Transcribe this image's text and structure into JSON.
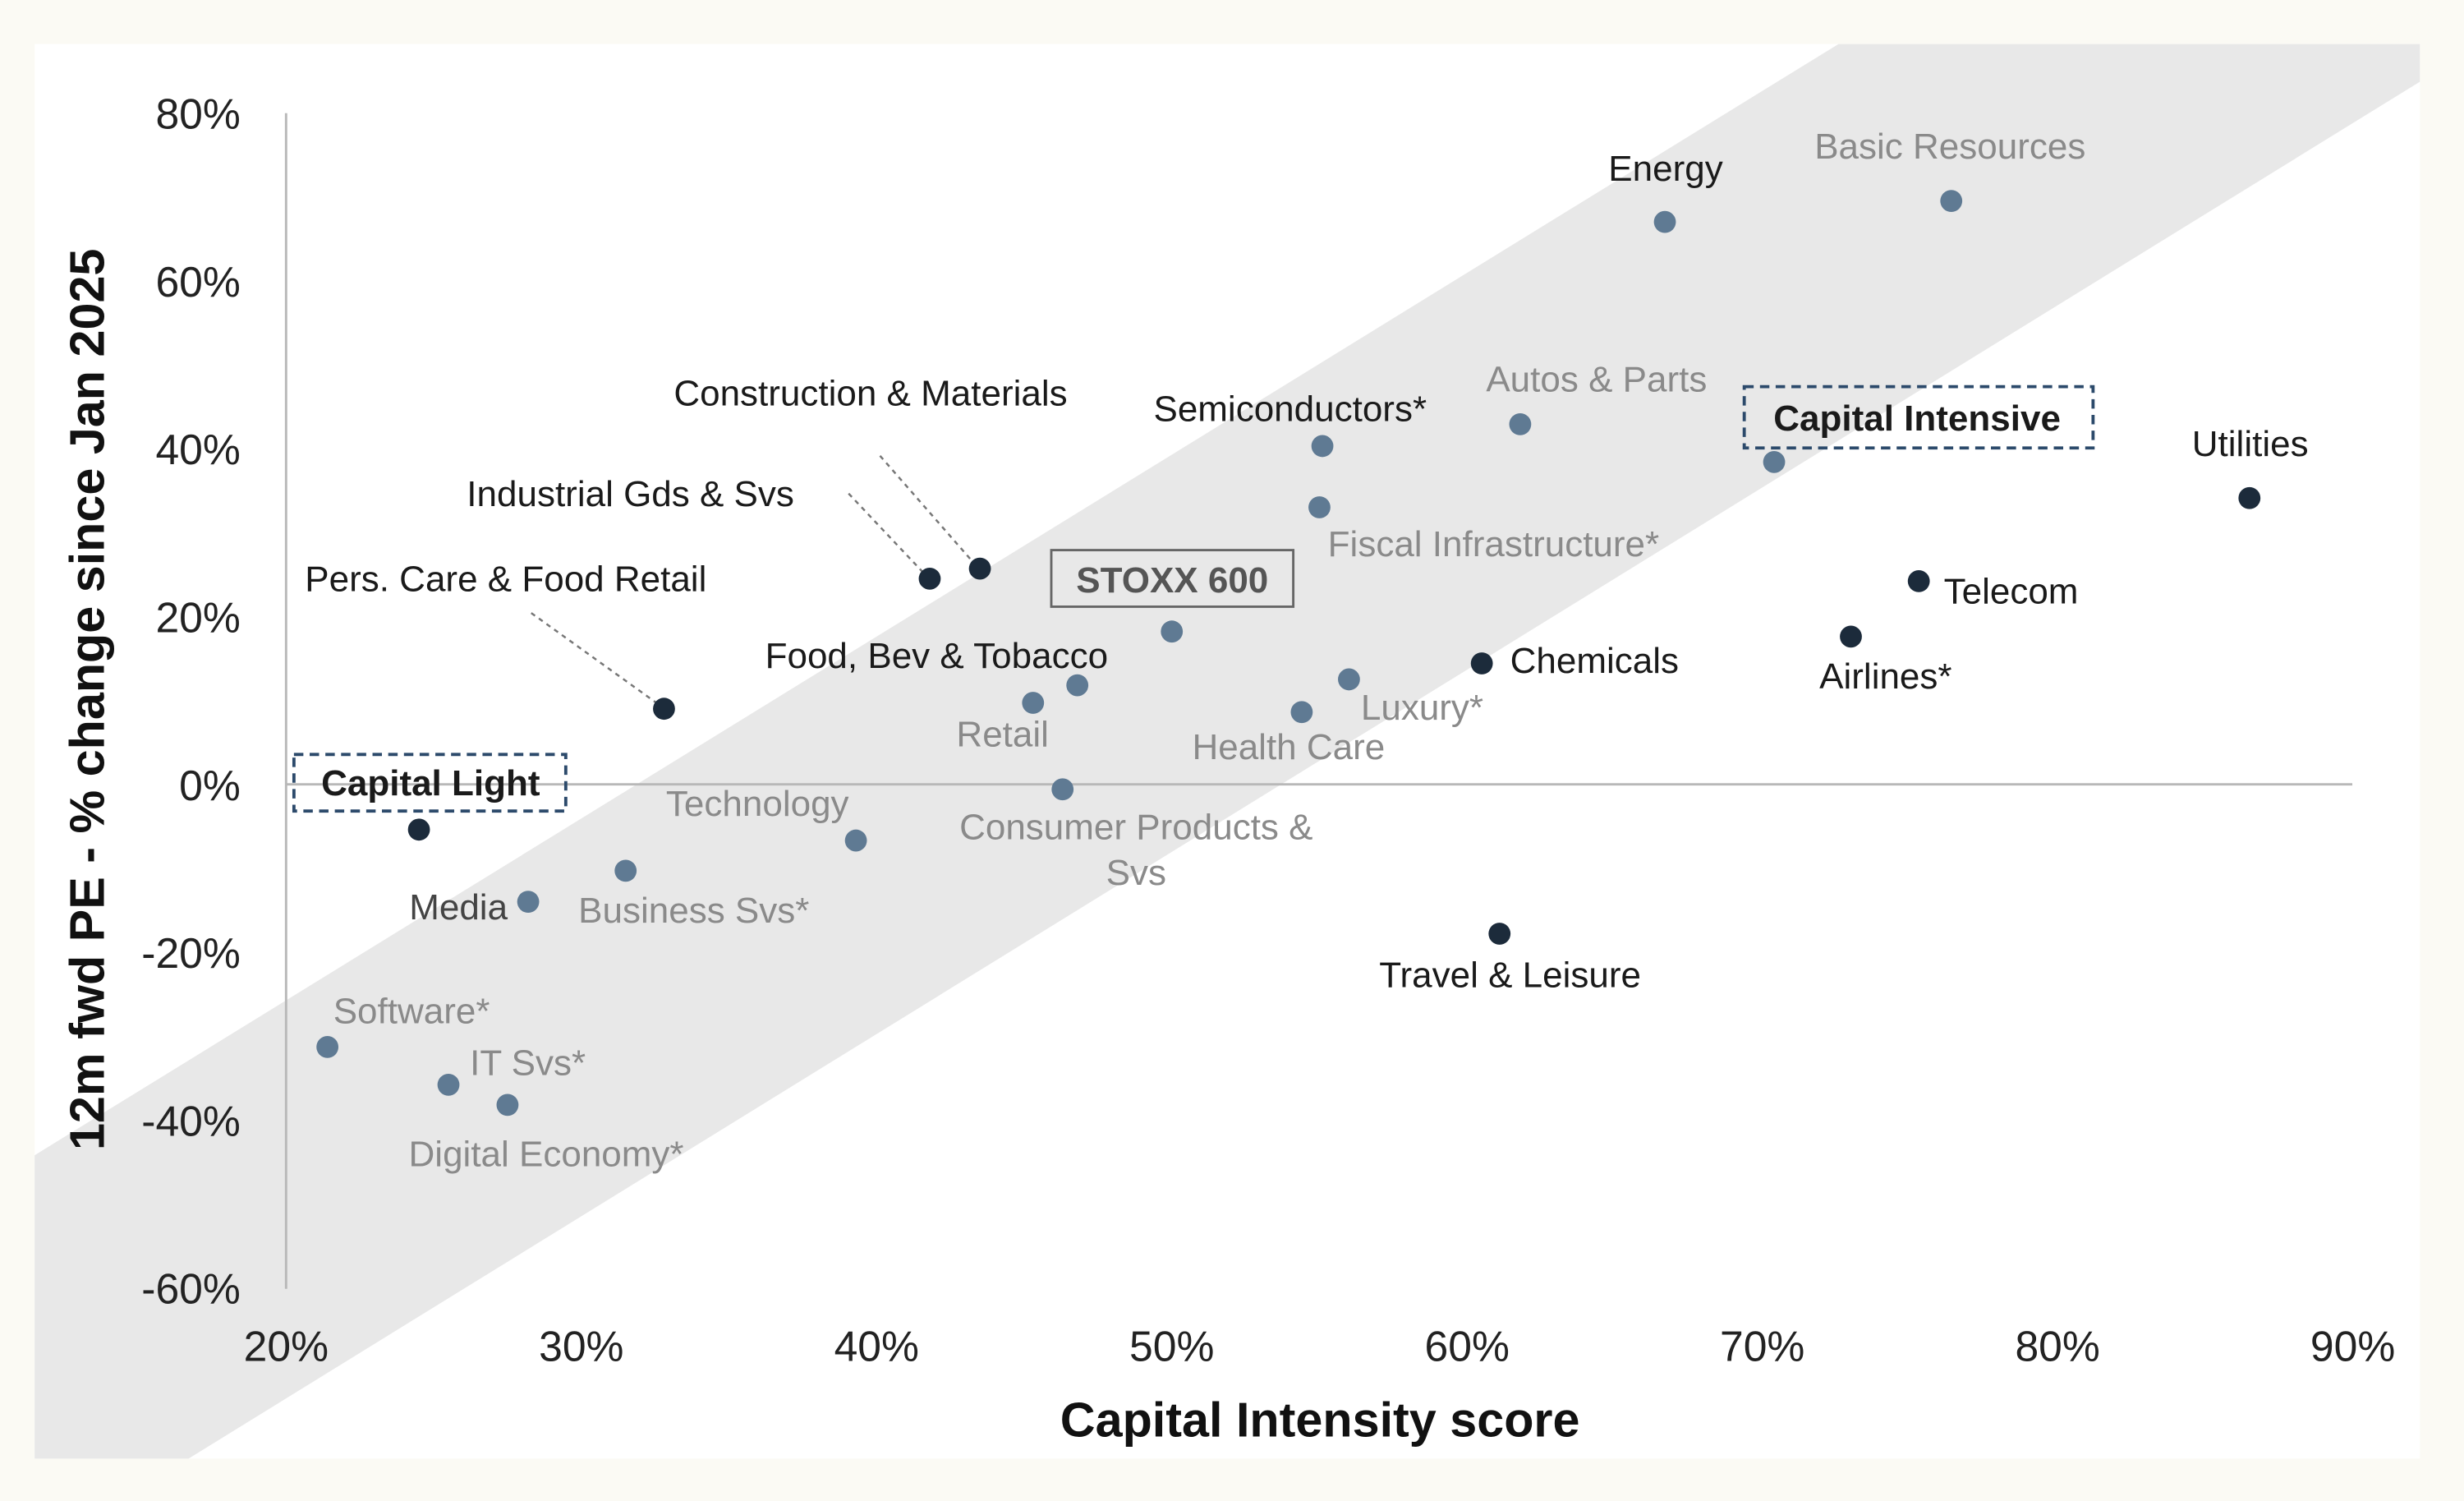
{
  "chart_data": {
    "type": "scatter",
    "title": "",
    "xlabel": "Capital Intensity score",
    "ylabel": "12m fwd PE - % change since Jan 2025",
    "xlim": [
      20,
      90
    ],
    "ylim": [
      -60,
      80
    ],
    "x_ticks": [
      "20%",
      "30%",
      "40%",
      "50%",
      "60%",
      "70%",
      "80%",
      "90%"
    ],
    "y_ticks": [
      "80%",
      "60%",
      "40%",
      "20%",
      "0%",
      "-20%",
      "-40%",
      "-60%"
    ],
    "grid": false,
    "colors": {
      "light_point": "#5f7a93",
      "dark_point": "#1c2b3b",
      "band": "#e8e8e8"
    },
    "annotations": {
      "capital_light": "Capital Light",
      "capital_intensive": "Capital Intensive",
      "benchmark": "STOXX 600"
    },
    "points": [
      {
        "name": "Energy",
        "x": 66.7,
        "y": 67.0,
        "group": "light"
      },
      {
        "name": "Basic Resources",
        "x": 76.4,
        "y": 69.5,
        "group": "light"
      },
      {
        "name": "Autos & Parts",
        "x": 61.8,
        "y": 42.9,
        "group": "light"
      },
      {
        "name": "Semiconductors*",
        "x": 55.1,
        "y": 40.3,
        "group": "light"
      },
      {
        "name": "Fiscal Infrastructure*",
        "x": 55.0,
        "y": 33.0,
        "group": "light"
      },
      {
        "name": "Capital Intensive",
        "x": 70.4,
        "y": 38.4,
        "group": "light"
      },
      {
        "name": "Utilities",
        "x": 86.5,
        "y": 34.1,
        "group": "dark"
      },
      {
        "name": "Telecom",
        "x": 75.3,
        "y": 24.2,
        "group": "dark"
      },
      {
        "name": "Airlines*",
        "x": 73.0,
        "y": 17.6,
        "group": "dark"
      },
      {
        "name": "Chemicals",
        "x": 60.5,
        "y": 14.4,
        "group": "dark"
      },
      {
        "name": "Construction & Materials",
        "x": 43.5,
        "y": 25.7,
        "group": "dark"
      },
      {
        "name": "Industrial Gds & Svs",
        "x": 41.8,
        "y": 24.5,
        "group": "dark"
      },
      {
        "name": "Pers. Care & Food Retail",
        "x": 32.8,
        "y": 9.0,
        "group": "dark"
      },
      {
        "name": "STOXX 600",
        "x": 50.0,
        "y": 18.2,
        "group": "light"
      },
      {
        "name": "Food, Bev & Tobacco",
        "x": 46.8,
        "y": 11.8,
        "group": "light"
      },
      {
        "name": "Retail",
        "x": 45.3,
        "y": 9.7,
        "group": "light"
      },
      {
        "name": "Luxury*",
        "x": 56.0,
        "y": 12.5,
        "group": "light"
      },
      {
        "name": "Health Care",
        "x": 54.4,
        "y": 8.6,
        "group": "light"
      },
      {
        "name": "Consumer Products & Svs",
        "x": 46.3,
        "y": -0.6,
        "group": "light"
      },
      {
        "name": "Technology",
        "x": 39.3,
        "y": -6.7,
        "group": "light"
      },
      {
        "name": "Capital Light",
        "x": 24.5,
        "y": -5.4,
        "group": "dark"
      },
      {
        "name": "Business Svs*",
        "x": 31.5,
        "y": -10.3,
        "group": "light"
      },
      {
        "name": "Media",
        "x": 28.2,
        "y": -14.0,
        "group": "light"
      },
      {
        "name": "Travel & Leisure",
        "x": 61.1,
        "y": -17.8,
        "group": "dark"
      },
      {
        "name": "Software*",
        "x": 21.4,
        "y": -31.3,
        "group": "light"
      },
      {
        "name": "IT Svs*",
        "x": 25.5,
        "y": -35.8,
        "group": "light"
      },
      {
        "name": "Digital Economy*",
        "x": 27.5,
        "y": -38.2,
        "group": "light"
      }
    ],
    "label_text": {
      "consumer_line1": "Consumer Products &",
      "consumer_line2": "Svs"
    }
  }
}
